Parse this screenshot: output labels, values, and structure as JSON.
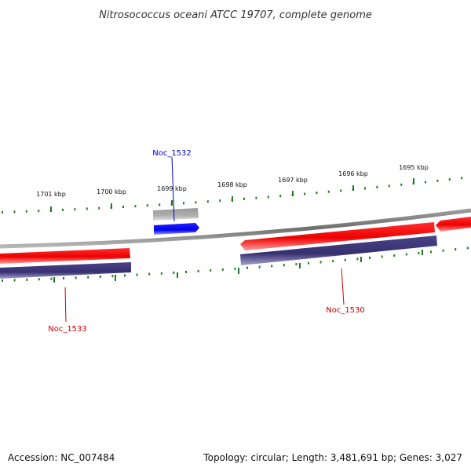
{
  "header": {
    "title": "Nitrosococcus oceani ATCC 19707, complete genome"
  },
  "ticks": [
    {
      "label": "1701 kbp"
    },
    {
      "label": "1700 kbp"
    },
    {
      "label": "1699 kbp"
    },
    {
      "label": "1698 kbp"
    },
    {
      "label": "1697 kbp"
    },
    {
      "label": "1696 kbp"
    },
    {
      "label": "1695 kbp"
    }
  ],
  "genes": [
    {
      "label": "Noc_1532",
      "color": "#0000cc"
    },
    {
      "label": "Noc_1533",
      "color": "#cc0000"
    },
    {
      "label": "Noc_1530",
      "color": "#cc0000"
    }
  ],
  "colors": {
    "forward_strand": "#ee0000",
    "reverse_strand": "#3c3575",
    "highlight_gene": "#0000ee",
    "pseudo_gene": "#aaaaaa",
    "backbone": "#808080",
    "ticks": "#1f7a1f"
  },
  "footer": {
    "accession": "Accession: NC_007484",
    "summary": "Topology: circular; Length: 3,481,691 bp; Genes: 3,027"
  }
}
